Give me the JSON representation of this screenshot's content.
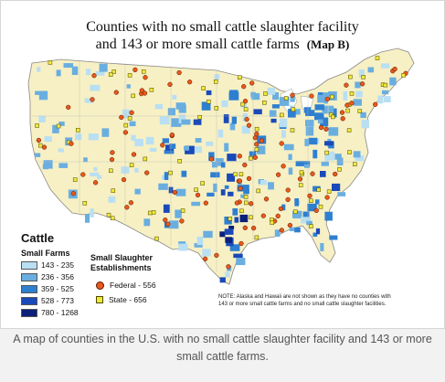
{
  "map": {
    "title_line1": "Counties with no small cattle slaughter facility",
    "title_line2": "and 143 or more small cattle farms",
    "title_tag": "(Map B)"
  },
  "legend": {
    "title": "Cattle",
    "subtitle": "Small Farms",
    "ranges": [
      {
        "label": "143 - 235",
        "color": "#b9dff2"
      },
      {
        "label": "236 - 356",
        "color": "#6aaee0"
      },
      {
        "label": "359 - 525",
        "color": "#2f7fd0"
      },
      {
        "label": "528 - 773",
        "color": "#1a49b8"
      },
      {
        "label": "780 - 1268",
        "color": "#0c1f7a"
      }
    ]
  },
  "establishments": {
    "title_line1": "Small Slaughter",
    "title_line2": "Establishments",
    "federal_label": "Federal - 556",
    "state_label": "State - 656",
    "federal_color": "#e8581c",
    "state_color": "#f2e83a"
  },
  "note": "NOTE:  Alaska and Hawaii are not shown as they have no counties with 143 or more small cattle farms and no small cattle slaughter facilities.",
  "caption": "A map of counties in the U.S. with no small cattle slaughter facility and 143 or more small cattle farms."
}
